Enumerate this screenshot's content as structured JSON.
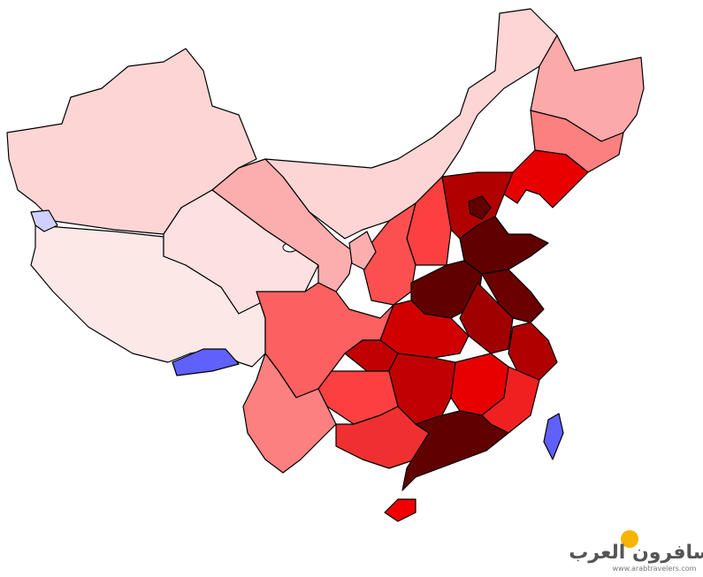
{
  "watermark": {
    "title": "المسافرون العرب",
    "url": "www.arabtravelers.com"
  }
}
